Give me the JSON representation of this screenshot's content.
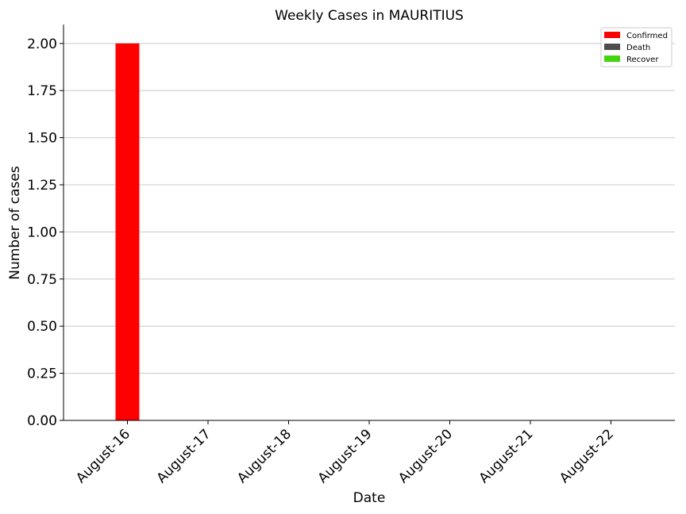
{
  "chart_data": {
    "type": "bar",
    "title": "Weekly Cases in MAURITIUS",
    "xlabel": "Date",
    "ylabel": "Number of cases",
    "categories": [
      "August-16",
      "August-17",
      "August-18",
      "August-19",
      "August-20",
      "August-21",
      "August-22"
    ],
    "series": [
      {
        "name": "Confirmed",
        "color": "#ff0000",
        "values": [
          2,
          0,
          0,
          0,
          0,
          0,
          0
        ]
      },
      {
        "name": "Death",
        "color": "#4d4d4d",
        "values": [
          0,
          0,
          0,
          0,
          0,
          0,
          0
        ]
      },
      {
        "name": "Recover",
        "color": "#44d511",
        "values": [
          0,
          0,
          0,
          0,
          0,
          0,
          0
        ]
      }
    ],
    "ylim": [
      0,
      2.1
    ],
    "yticks": [
      "0.00",
      "0.25",
      "0.50",
      "0.75",
      "1.00",
      "1.25",
      "1.50",
      "1.75",
      "2.00"
    ],
    "ytick_values": [
      0,
      0.25,
      0.5,
      0.75,
      1.0,
      1.25,
      1.5,
      1.75,
      2.0
    ],
    "grid": "horizontal",
    "legend_position": "top-right",
    "xtick_rotation": 45
  }
}
